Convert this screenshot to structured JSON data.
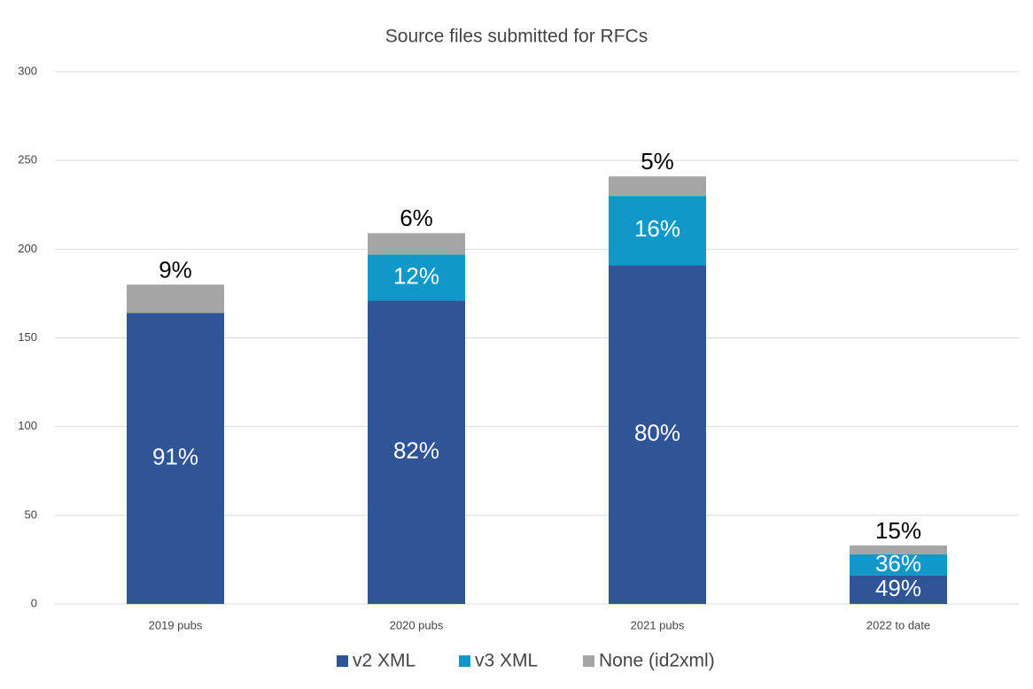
{
  "chart_data": {
    "type": "stacked_bar",
    "title": "Source files submitted for RFCs",
    "categories": [
      "2019 pubs",
      "2020 pubs",
      "2021 pubs",
      "2022 to date"
    ],
    "series": [
      {
        "name": "v2 XML",
        "color": "#2f5597",
        "values": [
          164,
          171,
          191,
          16
        ],
        "shares": [
          91,
          82,
          80,
          49
        ],
        "share_labels": [
          "91%",
          "82%",
          "80%",
          "49%"
        ]
      },
      {
        "name": "v3 XML",
        "color": "#0f98c8",
        "values": [
          null,
          26,
          39,
          12
        ],
        "shares": [
          null,
          12,
          16,
          36
        ],
        "share_labels": [
          null,
          "12%",
          "16%",
          "36%"
        ]
      },
      {
        "name": "None (id2xml)",
        "color": "#a5a5a5",
        "values": [
          16,
          12,
          11,
          5
        ],
        "shares": [
          9,
          6,
          5,
          15
        ],
        "share_labels": [
          "9%",
          "6%",
          "5%",
          "15%"
        ]
      }
    ],
    "ylim": [
      0,
      300
    ],
    "yticks": [
      0,
      50,
      100,
      150,
      200,
      250,
      300
    ],
    "grid": true,
    "legend": "bottom"
  }
}
